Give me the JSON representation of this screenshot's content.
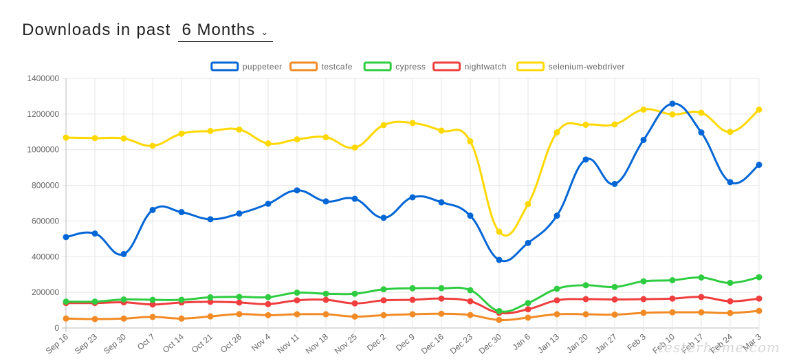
{
  "header": {
    "title": "Downloads in past",
    "period_label": "6 Months"
  },
  "watermark": "testerhome.com",
  "chart_data": {
    "type": "line",
    "title": "",
    "xlabel": "",
    "ylabel": "",
    "ylim": [
      0,
      1400000
    ],
    "yticks": [
      0,
      200000,
      400000,
      600000,
      800000,
      1000000,
      1200000,
      1400000
    ],
    "grid": true,
    "legend_position": "top-center",
    "categories": [
      "Sep 16",
      "Sep 23",
      "Sep 30",
      "Oct 7",
      "Oct 14",
      "Oct 21",
      "Oct 28",
      "Nov 4",
      "Nov 11",
      "Nov 18",
      "Nov 25",
      "Dec 2",
      "Dec 9",
      "Dec 16",
      "Dec 23",
      "Dec 30",
      "Jan 6",
      "Jan 13",
      "Jan 20",
      "Jan 27",
      "Feb 3",
      "Feb 10",
      "Feb 17",
      "Feb 24",
      "Mar 3"
    ],
    "series": [
      {
        "name": "puppeteer",
        "color": "#0366d6",
        "values": [
          510000,
          530000,
          415000,
          662000,
          650000,
          610000,
          642000,
          697000,
          772000,
          710000,
          725000,
          618000,
          733000,
          705000,
          630000,
          382000,
          477000,
          630000,
          945000,
          808000,
          1055000,
          1258000,
          1097000,
          818000,
          915000
        ]
      },
      {
        "name": "testcafe",
        "color": "#f28b25",
        "values": [
          53000,
          50000,
          53000,
          62000,
          53000,
          65000,
          78000,
          72000,
          77000,
          77000,
          64000,
          72000,
          77000,
          80000,
          73000,
          45000,
          58000,
          77000,
          77000,
          75000,
          85000,
          88000,
          88000,
          84000,
          96000
        ]
      },
      {
        "name": "cypress",
        "color": "#2ecc40",
        "values": [
          148000,
          148000,
          160000,
          158000,
          158000,
          172000,
          175000,
          173000,
          198000,
          192000,
          192000,
          217000,
          223000,
          223000,
          212000,
          95000,
          140000,
          220000,
          240000,
          230000,
          262000,
          268000,
          283000,
          253000,
          285000
        ]
      },
      {
        "name": "nightwatch",
        "color": "#f03e3e",
        "values": [
          140000,
          140000,
          144000,
          132000,
          143000,
          147000,
          143000,
          134000,
          155000,
          158000,
          138000,
          155000,
          158000,
          165000,
          150000,
          85000,
          105000,
          155000,
          162000,
          160000,
          162000,
          165000,
          174000,
          150000,
          165000
        ]
      },
      {
        "name": "selenium-webdriver",
        "color": "#ffd800",
        "values": [
          1068000,
          1065000,
          1063000,
          1022000,
          1090000,
          1105000,
          1113000,
          1035000,
          1058000,
          1070000,
          1012000,
          1138000,
          1150000,
          1107000,
          1047000,
          540000,
          695000,
          1097000,
          1140000,
          1142000,
          1225000,
          1198000,
          1207000,
          1100000,
          1225000
        ]
      }
    ]
  }
}
